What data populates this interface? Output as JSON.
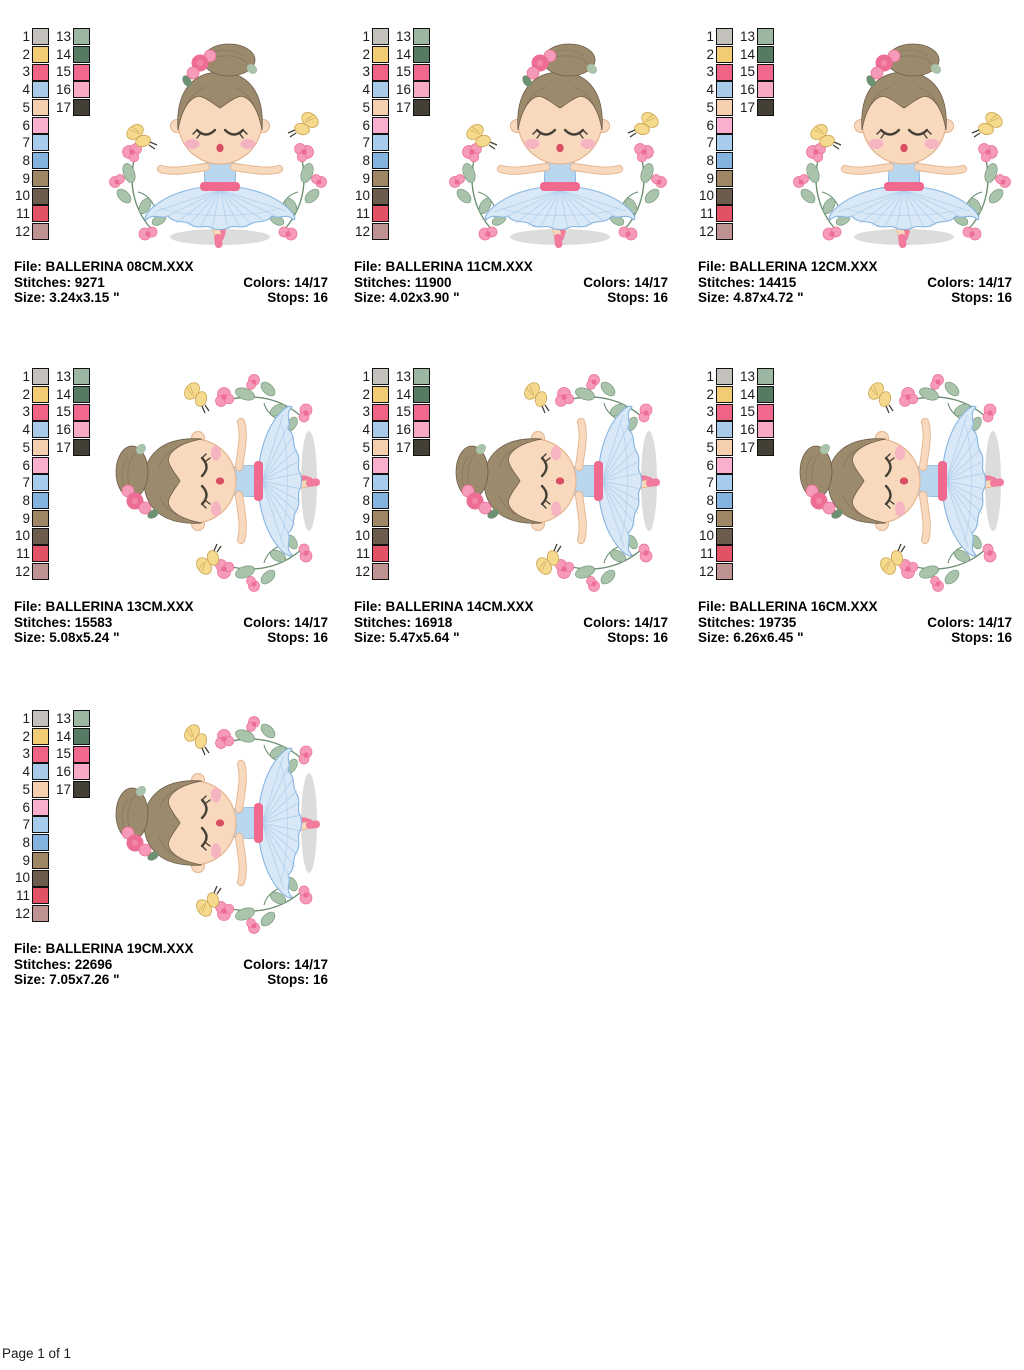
{
  "page": {
    "footer": "Page 1 of 1"
  },
  "palette": {
    "left": [
      {
        "num": "1",
        "color": "#c4c1bc"
      },
      {
        "num": "2",
        "color": "#f1cc74"
      },
      {
        "num": "3",
        "color": "#ef6384"
      },
      {
        "num": "4",
        "color": "#a9cae9"
      },
      {
        "num": "5",
        "color": "#f6cfae"
      },
      {
        "num": "6",
        "color": "#f9afcd"
      },
      {
        "num": "7",
        "color": "#a7cbec"
      },
      {
        "num": "8",
        "color": "#85b3df"
      },
      {
        "num": "9",
        "color": "#9f8766"
      },
      {
        "num": "10",
        "color": "#6c5c4d"
      },
      {
        "num": "11",
        "color": "#e25165"
      },
      {
        "num": "12",
        "color": "#bf9292"
      }
    ],
    "right": [
      {
        "num": "13",
        "color": "#9cb6a2"
      },
      {
        "num": "14",
        "color": "#567a62"
      },
      {
        "num": "15",
        "color": "#f1688f"
      },
      {
        "num": "16",
        "color": "#f9a9c6"
      },
      {
        "num": "17",
        "color": "#433f35"
      }
    ]
  },
  "designs": [
    {
      "file": "File: BALLERINA 08CM.XXX",
      "stitches": "Stitches: 9271",
      "size": "Size: 3.24x3.15 \"",
      "colors": "Colors: 14/17",
      "stops": "Stops: 16",
      "pose": "upright"
    },
    {
      "file": "File: BALLERINA 11CM.XXX",
      "stitches": "Stitches: 11900",
      "size": "Size: 4.02x3.90 \"",
      "colors": "Colors: 14/17",
      "stops": "Stops: 16",
      "pose": "upright"
    },
    {
      "file": "File: BALLERINA 12CM.XXX",
      "stitches": "Stitches: 14415",
      "size": "Size: 4.87x4.72 \"",
      "colors": "Colors: 14/17",
      "stops": "Stops: 16",
      "pose": "upright"
    },
    {
      "file": "File: BALLERINA 13CM.XXX",
      "stitches": "Stitches: 15583",
      "size": "Size: 5.08x5.24 \"",
      "colors": "Colors: 14/17",
      "stops": "Stops: 16",
      "pose": "rotated"
    },
    {
      "file": "File: BALLERINA 14CM.XXX",
      "stitches": "Stitches: 16918",
      "size": "Size: 5.47x5.64 \"",
      "colors": "Colors: 14/17",
      "stops": "Stops: 16",
      "pose": "rotated"
    },
    {
      "file": "File: BALLERINA 16CM.XXX",
      "stitches": "Stitches: 19735",
      "size": "Size: 6.26x6.45 \"",
      "colors": "Colors: 14/17",
      "stops": "Stops: 16",
      "pose": "rotated"
    },
    {
      "file": "File: BALLERINA 19CM.XXX",
      "stitches": "Stitches: 22696",
      "size": "Size: 7.05x7.26 \"",
      "colors": "Colors: 14/17",
      "stops": "Stops: 16",
      "pose": "rotated"
    }
  ],
  "artwork": {
    "skin": "#f8d9bd",
    "skin_outline": "#e3b48e",
    "hair": "#9c8a6d",
    "hair_dark": "#6d5c49",
    "tutu_light": "#d8e8f7",
    "tutu_mid": "#aacbe9",
    "tutu_line": "#86b4e1",
    "leotard": "#b9d6ef",
    "sash": "#f0698e",
    "blush": "#f6b3c2",
    "mouth": "#d94f63",
    "flower_pink": "#f59ab8",
    "flower_deep": "#ee6d95",
    "leaf": "#a9c4ab",
    "leaf_dark": "#6d8f72",
    "butterfly": "#f5d98d",
    "butterfly_dark": "#caa24e",
    "shoe": "#f27a9d",
    "ribbon": "#9cc0e4",
    "shadow": "#dcdcdc",
    "lash": "#433f35"
  }
}
